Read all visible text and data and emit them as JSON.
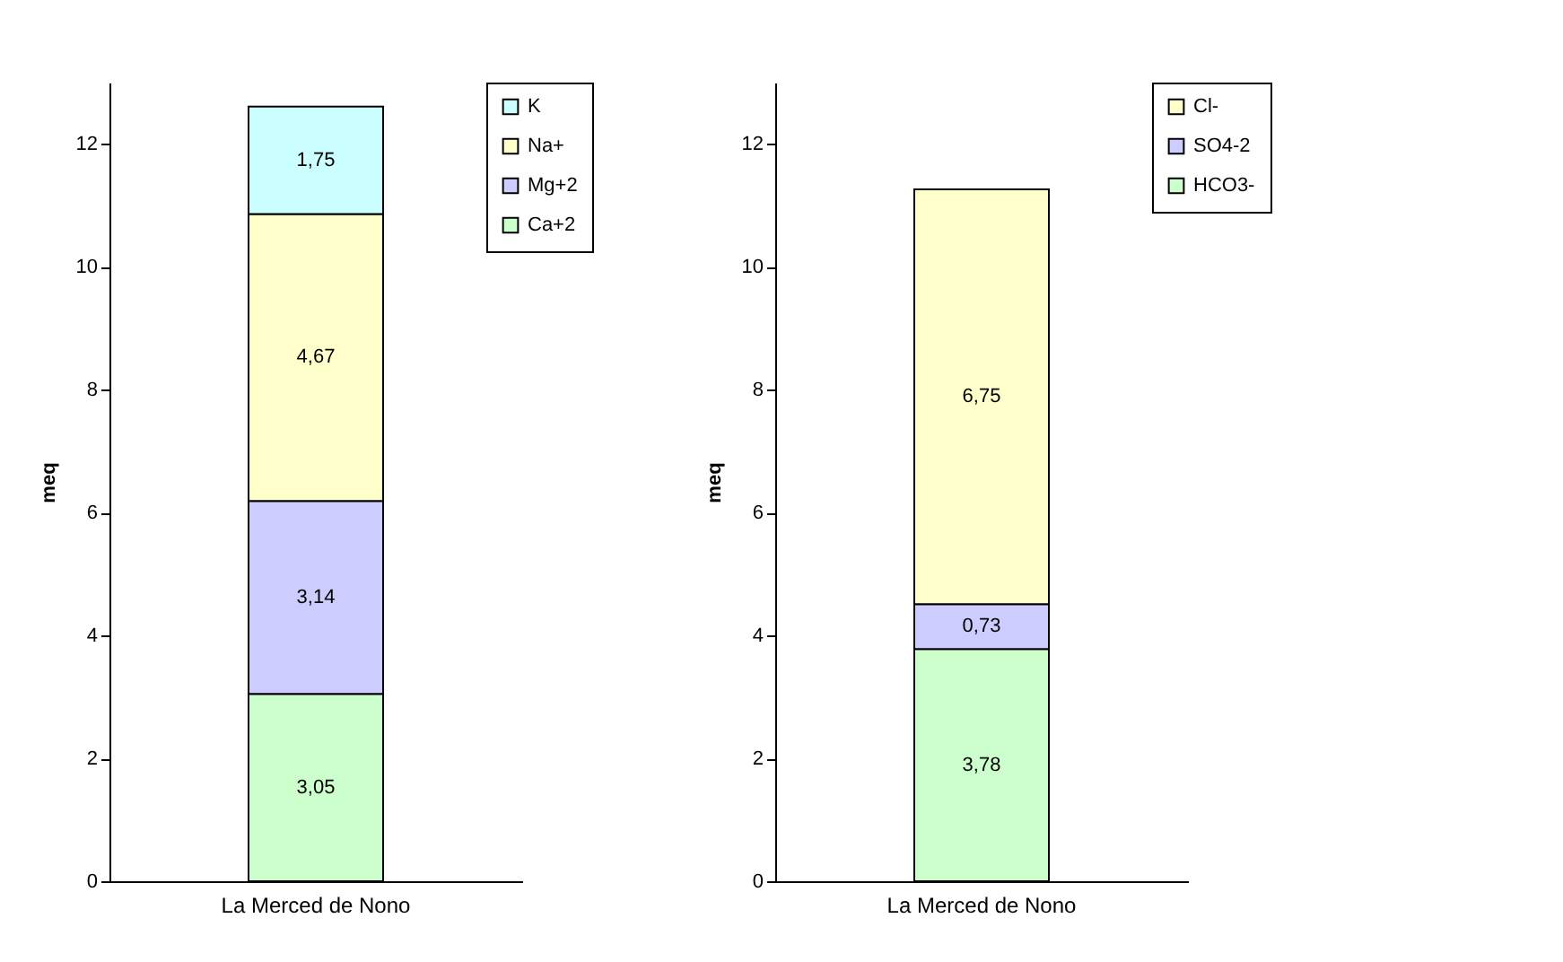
{
  "chart_data": [
    {
      "type": "bar",
      "ylabel": "meq",
      "categories": [
        "La Merced de Nono"
      ],
      "stacked": true,
      "ylim": [
        0,
        13
      ],
      "yticks": [
        0,
        2,
        4,
        6,
        8,
        10,
        12
      ],
      "legend": "right",
      "series": [
        {
          "name": "Ca+2",
          "color": "#ccffcc",
          "values": [
            3.05
          ],
          "value_labels": [
            "3,05"
          ]
        },
        {
          "name": "Mg+2",
          "color": "#ccccff",
          "values": [
            3.14
          ],
          "value_labels": [
            "3,14"
          ]
        },
        {
          "name": "Na+",
          "color": "#ffffcc",
          "values": [
            4.67
          ],
          "value_labels": [
            "4,67"
          ]
        },
        {
          "name": "K",
          "color": "#ccffff",
          "values": [
            1.75
          ],
          "value_labels": [
            "1,75"
          ]
        }
      ]
    },
    {
      "type": "bar",
      "ylabel": "meq",
      "categories": [
        "La Merced de Nono"
      ],
      "stacked": true,
      "ylim": [
        0,
        13
      ],
      "yticks": [
        0,
        2,
        4,
        6,
        8,
        10,
        12
      ],
      "legend": "right",
      "series": [
        {
          "name": "HCO3-",
          "color": "#ccffcc",
          "values": [
            3.78
          ],
          "value_labels": [
            "3,78"
          ]
        },
        {
          "name": "SO4-2",
          "color": "#ccccff",
          "values": [
            0.73
          ],
          "value_labels": [
            "0,73"
          ]
        },
        {
          "name": "Cl-",
          "color": "#ffffcc",
          "values": [
            6.75
          ],
          "value_labels": [
            "6,75"
          ]
        }
      ]
    }
  ]
}
